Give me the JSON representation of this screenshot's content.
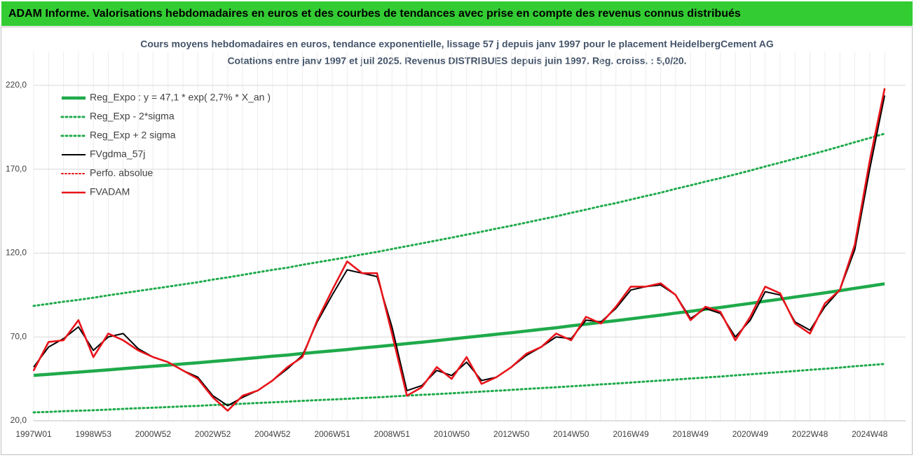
{
  "header": {
    "title": "ADAM Informe. Valorisations hebdomadaires en euros et des courbes de tendances avec prise en compte des revenus connus distribués"
  },
  "chart_data": {
    "type": "line",
    "title": "Cours moyens hebdomadaires en euros, tendance exponentielle, lissage 57 j depuis janv 1997 pour le placement HeidelbergCement AG",
    "subtitle": "Cotations entre janv 1997 et juil 2025. Revenus DISTRIBUES depuis juin 1997. Reg. croiss. : 5,0/20.",
    "categories": [
      "1997W01",
      null,
      null,
      null,
      "1998W53",
      null,
      null,
      null,
      "2000W52",
      null,
      null,
      null,
      "2002W52",
      null,
      null,
      null,
      "2004W52",
      null,
      null,
      null,
      "2006W51",
      null,
      null,
      null,
      "2008W51",
      null,
      null,
      null,
      "2010W50",
      null,
      null,
      null,
      "2012W50",
      null,
      null,
      null,
      "2014W50",
      null,
      null,
      null,
      "2016W49",
      null,
      null,
      null,
      "2018W49",
      null,
      null,
      null,
      "2020W49",
      null,
      null,
      null,
      "2022W48",
      null,
      null,
      null,
      "2024W48",
      null
    ],
    "ylim": [
      20,
      240
    ],
    "yticks": [
      {
        "value": 20,
        "label": "20,0"
      },
      {
        "value": 70,
        "label": "70,0"
      },
      {
        "value": 120,
        "label": "120,0"
      },
      {
        "value": 170,
        "label": "170,0"
      },
      {
        "value": 220,
        "label": "220,0"
      }
    ],
    "grid": true,
    "legend": "upper left",
    "series": [
      {
        "name": "Reg_Expo : y = 47,1 * exp( 2,7% *  X_an )",
        "color": "#1faa4b",
        "values": [
          47.1,
          47.7,
          48.4,
          49.0,
          49.7,
          50.4,
          51.1,
          51.8,
          52.5,
          53.2,
          53.9,
          54.6,
          55.4,
          56.1,
          56.9,
          57.7,
          58.5,
          59.2,
          60.1,
          60.9,
          61.7,
          62.5,
          63.4,
          64.2,
          65.1,
          66.0,
          66.9,
          67.8,
          68.7,
          69.7,
          70.6,
          71.6,
          72.5,
          73.5,
          74.5,
          75.5,
          76.6,
          77.6,
          78.7,
          79.7,
          80.8,
          81.9,
          83.0,
          84.2,
          85.3,
          86.5,
          87.6,
          88.8,
          90.0,
          91.3,
          92.5,
          93.8,
          95.0,
          96.3,
          97.6,
          99.0,
          100.3,
          101.7
        ]
      },
      {
        "name": "Reg_Exp - 2*sigma",
        "color": "#1faa4b",
        "values": [
          25.0,
          25.3,
          25.7,
          26.0,
          26.3,
          26.7,
          27.1,
          27.5,
          27.8,
          28.2,
          28.6,
          28.9,
          29.4,
          29.7,
          30.2,
          30.6,
          31.0,
          31.4,
          31.9,
          32.3,
          32.7,
          33.1,
          33.6,
          34.0,
          34.5,
          35.0,
          35.5,
          35.9,
          36.4,
          36.9,
          37.4,
          37.9,
          38.4,
          39.0,
          39.5,
          40.0,
          40.6,
          41.1,
          41.7,
          42.2,
          42.8,
          43.4,
          44.0,
          44.6,
          45.2,
          45.8,
          46.4,
          47.1,
          47.7,
          48.4,
          49.0,
          49.7,
          50.4,
          51.0,
          51.7,
          52.5,
          53.2,
          53.9
        ]
      },
      {
        "name": "Reg_Exp + 2 sigma",
        "color": "#1faa4b",
        "values": [
          88.5,
          89.7,
          91.0,
          92.1,
          93.4,
          94.8,
          96.1,
          97.4,
          98.7,
          100.0,
          101.3,
          102.6,
          104.2,
          105.5,
          107.0,
          108.5,
          110.0,
          111.3,
          113.0,
          114.5,
          116.0,
          117.5,
          119.2,
          120.7,
          122.4,
          124.1,
          125.8,
          127.5,
          129.2,
          131.0,
          132.7,
          134.6,
          136.3,
          138.2,
          140.1,
          141.9,
          144.0,
          145.9,
          148.0,
          149.8,
          151.9,
          154.0,
          156.0,
          158.3,
          160.4,
          162.6,
          164.7,
          166.9,
          169.2,
          171.6,
          173.9,
          176.3,
          178.6,
          181.0,
          183.5,
          186.1,
          188.6,
          191.2
        ]
      },
      {
        "name": "FVgdma_57j",
        "color": "#000000",
        "values": [
          52,
          64,
          69,
          76,
          62,
          70,
          72,
          63,
          58,
          55,
          50,
          46,
          35,
          29,
          34,
          38,
          44,
          51,
          59,
          79,
          95,
          110,
          108,
          106,
          76,
          38,
          41,
          50,
          47,
          55,
          44,
          46,
          52,
          59,
          64,
          70,
          69,
          80,
          79,
          87,
          98,
          100,
          101,
          95,
          81,
          87,
          84,
          70,
          80,
          97,
          95,
          79,
          74,
          88,
          98,
          122,
          170,
          214
        ]
      },
      {
        "name": "Perfo. absolue",
        "color": "#e8141b",
        "values": [
          50,
          67,
          68,
          80,
          58,
          72,
          68,
          62,
          58,
          55,
          50,
          45,
          34,
          26,
          35,
          38,
          44,
          52,
          58,
          80,
          98,
          115,
          108,
          108,
          72,
          35,
          40,
          52,
          45,
          58,
          42,
          46,
          52,
          60,
          64,
          72,
          68,
          82,
          78,
          88,
          100,
          100,
          102,
          95,
          80,
          88,
          85,
          68,
          82,
          100,
          96,
          78,
          72,
          90,
          98,
          125,
          175,
          218
        ]
      },
      {
        "name": "FVADAM",
        "color": "#e8141b",
        "values": [
          50,
          67,
          68,
          80,
          58,
          72,
          68,
          62,
          58,
          55,
          50,
          45,
          34,
          26,
          35,
          38,
          44,
          52,
          58,
          80,
          98,
          115,
          108,
          108,
          72,
          35,
          40,
          52,
          45,
          58,
          42,
          46,
          52,
          60,
          64,
          72,
          68,
          82,
          78,
          88,
          100,
          100,
          102,
          95,
          80,
          88,
          85,
          68,
          82,
          100,
          96,
          78,
          72,
          90,
          98,
          125,
          175,
          218
        ]
      }
    ]
  }
}
